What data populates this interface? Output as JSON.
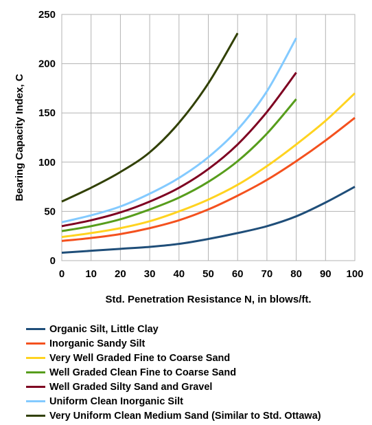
{
  "chart_data": {
    "type": "line",
    "title": "",
    "xlabel": "Std. Penetration Resistance N, in blows/ft.",
    "ylabel": "Bearing Capacity Index, C",
    "xlim": [
      0,
      100
    ],
    "ylim": [
      0,
      250
    ],
    "xticks": [
      0,
      10,
      20,
      30,
      40,
      50,
      60,
      70,
      80,
      90,
      100
    ],
    "yticks": [
      0,
      50,
      100,
      150,
      200,
      250
    ],
    "grid": true,
    "legend_position": "bottom",
    "series": [
      {
        "name": "Organic Silt, Little Clay",
        "color": "#1f4e79",
        "x": [
          0,
          10,
          20,
          30,
          40,
          50,
          60,
          70,
          80,
          90,
          100
        ],
        "y": [
          8,
          10,
          12,
          14,
          17,
          22,
          28,
          35,
          45,
          59,
          75
        ]
      },
      {
        "name": "Inorganic Sandy Silt",
        "color": "#f4511e",
        "x": [
          0,
          10,
          20,
          30,
          40,
          50,
          60,
          70,
          80,
          90,
          100
        ],
        "y": [
          20,
          23,
          27,
          33,
          41,
          52,
          66,
          82,
          101,
          122,
          145
        ]
      },
      {
        "name": "Very Well Graded Fine to Coarse Sand",
        "color": "#ffd320",
        "x": [
          0,
          10,
          20,
          30,
          40,
          50,
          60,
          70,
          80,
          90,
          100
        ],
        "y": [
          24,
          28,
          33,
          40,
          50,
          62,
          77,
          96,
          118,
          142,
          170
        ]
      },
      {
        "name": "Well Graded Clean Fine to Coarse Sand",
        "color": "#579d1c",
        "x": [
          0,
          10,
          20,
          30,
          40,
          50,
          60,
          70,
          80
        ],
        "y": [
          30,
          35,
          42,
          52,
          64,
          80,
          101,
          129,
          164
        ]
      },
      {
        "name": "Well Graded Silty Sand and Gravel",
        "color": "#7e0021",
        "x": [
          0,
          10,
          20,
          30,
          40,
          50,
          60,
          70,
          80
        ],
        "y": [
          35,
          41,
          49,
          60,
          74,
          93,
          118,
          151,
          191
        ]
      },
      {
        "name": "Uniform Clean Inorganic Silt",
        "color": "#83caff",
        "x": [
          0,
          10,
          20,
          30,
          40,
          50,
          60,
          70,
          80
        ],
        "y": [
          39,
          46,
          55,
          68,
          84,
          105,
          133,
          172,
          226
        ]
      },
      {
        "name": "Very Uniform Clean Medium Sand (Similar to Std. Ottawa)",
        "color": "#314004",
        "x": [
          0,
          10,
          20,
          30,
          40,
          50,
          60
        ],
        "y": [
          60,
          74,
          90,
          110,
          140,
          180,
          231
        ]
      }
    ]
  }
}
